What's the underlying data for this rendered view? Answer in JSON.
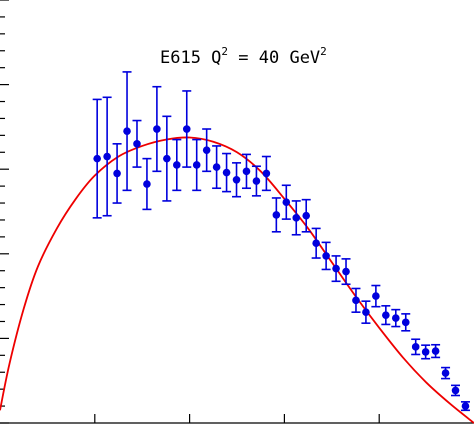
{
  "chart_data": {
    "type": "scatter",
    "annotation": {
      "prefix": "E615  Q",
      "q_exp": "2",
      "middle": " = 40 GeV",
      "gev_exp": "2"
    },
    "xlim": [
      0.0,
      1.0
    ],
    "ylim": [
      0.0,
      1.0
    ],
    "grid": false,
    "colors": {
      "points": "#0000dd",
      "curve": "#ee0000",
      "axes": "#000000"
    },
    "series": [
      {
        "kind": "points_with_errors",
        "x": [
          0.205,
          0.226,
          0.247,
          0.268,
          0.289,
          0.31,
          0.331,
          0.352,
          0.373,
          0.394,
          0.415,
          0.436,
          0.457,
          0.478,
          0.499,
          0.52,
          0.541,
          0.562,
          0.583,
          0.604,
          0.625,
          0.646,
          0.667,
          0.688,
          0.709,
          0.73,
          0.751,
          0.772,
          0.793,
          0.814,
          0.835,
          0.856,
          0.877,
          0.898,
          0.919,
          0.94,
          0.961,
          0.982
        ],
        "y": [
          0.625,
          0.63,
          0.59,
          0.69,
          0.66,
          0.565,
          0.695,
          0.625,
          0.61,
          0.695,
          0.61,
          0.645,
          0.605,
          0.592,
          0.575,
          0.595,
          0.572,
          0.59,
          0.492,
          0.522,
          0.485,
          0.49,
          0.425,
          0.395,
          0.365,
          0.358,
          0.29,
          0.262,
          0.3,
          0.255,
          0.248,
          0.238,
          0.18,
          0.168,
          0.17,
          0.118,
          0.077,
          0.04
        ],
        "yerr": [
          0.14,
          0.14,
          0.07,
          0.14,
          0.055,
          0.06,
          0.1,
          0.1,
          0.06,
          0.09,
          0.06,
          0.05,
          0.05,
          0.045,
          0.04,
          0.04,
          0.035,
          0.04,
          0.04,
          0.04,
          0.04,
          0.038,
          0.035,
          0.032,
          0.03,
          0.03,
          0.028,
          0.026,
          0.025,
          0.022,
          0.02,
          0.02,
          0.018,
          0.016,
          0.015,
          0.013,
          0.012,
          0.01
        ]
      },
      {
        "kind": "curve",
        "x": [
          0.0,
          0.02,
          0.05,
          0.08,
          0.12,
          0.16,
          0.2,
          0.25,
          0.3,
          0.35,
          0.4,
          0.45,
          0.5,
          0.55,
          0.6,
          0.65,
          0.7,
          0.75,
          0.8,
          0.85,
          0.9,
          0.95,
          1.0
        ],
        "y": [
          0.03,
          0.14,
          0.27,
          0.37,
          0.46,
          0.53,
          0.585,
          0.63,
          0.655,
          0.67,
          0.675,
          0.665,
          0.64,
          0.595,
          0.53,
          0.46,
          0.38,
          0.3,
          0.225,
          0.155,
          0.095,
          0.045,
          0.0
        ]
      }
    ],
    "ticks": {
      "left_y": [
        0.0,
        0.04,
        0.08,
        0.12,
        0.16,
        0.2,
        0.24,
        0.28,
        0.32,
        0.36,
        0.4,
        0.44,
        0.48,
        0.52,
        0.56,
        0.6,
        0.64,
        0.68,
        0.72,
        0.76,
        0.8,
        0.84,
        0.88,
        0.92,
        0.96,
        1.0
      ],
      "left_major_every": 5,
      "bottom_x": [
        0.2,
        0.4,
        0.6,
        0.8
      ]
    }
  }
}
